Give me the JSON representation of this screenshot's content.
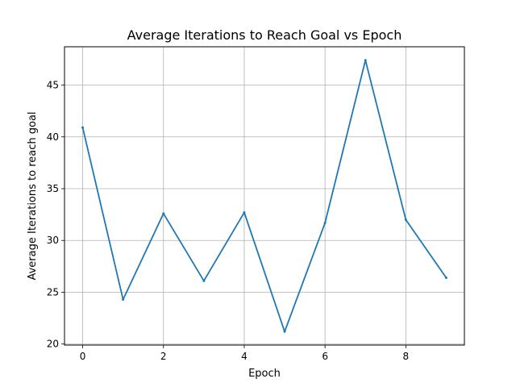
{
  "chart_data": {
    "type": "line",
    "title": "Average Iterations to Reach Goal vs Epoch",
    "xlabel": "Epoch",
    "ylabel": "Average Iterations to reach goal",
    "x": [
      0,
      1,
      2,
      3,
      4,
      5,
      6,
      7,
      8,
      9
    ],
    "series": [
      {
        "values": [
          40.9,
          24.3,
          32.6,
          26.1,
          32.7,
          21.2,
          31.7,
          47.4,
          32.0,
          26.4
        ],
        "color": "#1f77b4"
      }
    ],
    "xlim": [
      -0.45,
      9.45
    ],
    "ylim": [
      19.9,
      48.7
    ],
    "xticks": [
      0,
      2,
      4,
      6,
      8
    ],
    "yticks": [
      20,
      25,
      30,
      35,
      40,
      45
    ],
    "grid": true
  }
}
